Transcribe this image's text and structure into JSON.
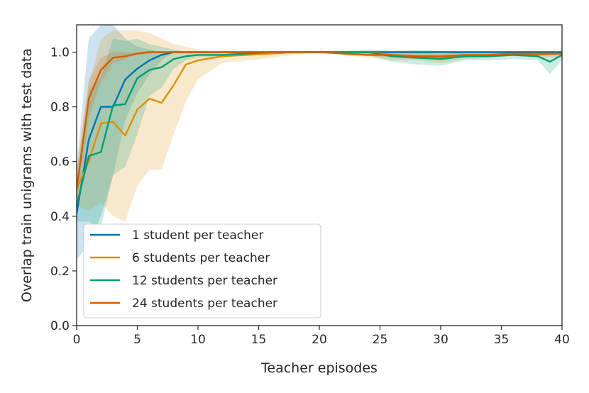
{
  "chart_data": {
    "type": "line",
    "xlabel": "Teacher episodes",
    "ylabel": "Overlap train unigrams with test data",
    "xlim": [
      0,
      40
    ],
    "ylim": [
      0.0,
      1.1
    ],
    "xticks": [
      0,
      5,
      10,
      15,
      20,
      25,
      30,
      35,
      40
    ],
    "yticks": [
      0.0,
      0.2,
      0.4,
      0.6,
      0.8,
      1.0
    ],
    "xtick_labels": [
      "0",
      "5",
      "10",
      "15",
      "20",
      "25",
      "30",
      "35",
      "40"
    ],
    "ytick_labels": [
      "0.0",
      "0.2",
      "0.4",
      "0.6",
      "0.8",
      "1.0"
    ],
    "grid": false,
    "legend_position": "lower-left",
    "series": [
      {
        "name": "1 student per teacher",
        "color": "#0173b2",
        "x": [
          0,
          1,
          2,
          3,
          4,
          5,
          6,
          7,
          8,
          9,
          10,
          12,
          14,
          16,
          18,
          20,
          22,
          24,
          26,
          28,
          30,
          32,
          34,
          36,
          38,
          40
        ],
        "values": [
          0.41,
          0.68,
          0.8,
          0.8,
          0.9,
          0.94,
          0.97,
          0.99,
          1.0,
          1.0,
          1.0,
          1.0,
          1.0,
          1.0,
          1.0,
          1.0,
          1.0,
          1.0,
          1.0,
          1.0,
          1.0,
          1.0,
          1.0,
          1.0,
          1.0,
          1.0
        ],
        "lower": [
          0.24,
          0.3,
          0.4,
          0.55,
          0.75,
          0.85,
          0.92,
          0.97,
          1.0,
          1.0,
          1.0,
          1.0,
          1.0,
          1.0,
          1.0,
          1.0,
          1.0,
          1.0,
          1.0,
          1.0,
          1.0,
          1.0,
          1.0,
          1.0,
          1.0,
          1.0
        ],
        "upper": [
          0.58,
          1.05,
          1.1,
          1.1,
          1.05,
          1.02,
          1.01,
          1.0,
          1.0,
          1.0,
          1.0,
          1.0,
          1.0,
          1.0,
          1.0,
          1.0,
          1.0,
          1.0,
          1.0,
          1.0,
          1.0,
          1.0,
          1.0,
          1.0,
          1.0,
          1.0
        ]
      },
      {
        "name": "6 students per teacher",
        "color": "#de8f05",
        "x": [
          0,
          1,
          2,
          3,
          4,
          5,
          6,
          7,
          8,
          9,
          10,
          12,
          14,
          16,
          18,
          20,
          22,
          24,
          26,
          28,
          30,
          32,
          34,
          36,
          38,
          40
        ],
        "values": [
          0.5,
          0.6,
          0.74,
          0.745,
          0.695,
          0.79,
          0.83,
          0.815,
          0.88,
          0.955,
          0.97,
          0.985,
          0.99,
          0.995,
          1.0,
          1.0,
          1.0,
          1.0,
          0.99,
          0.985,
          0.98,
          0.985,
          0.99,
          0.995,
          0.99,
          0.995
        ],
        "lower": [
          0.44,
          0.42,
          0.45,
          0.4,
          0.38,
          0.51,
          0.57,
          0.57,
          0.7,
          0.82,
          0.9,
          0.96,
          0.97,
          0.98,
          0.99,
          1.0,
          0.99,
          0.98,
          0.97,
          0.97,
          0.96,
          0.975,
          0.98,
          0.985,
          0.98,
          0.98
        ],
        "upper": [
          0.56,
          0.88,
          1.05,
          1.08,
          1.08,
          1.08,
          1.07,
          1.05,
          1.03,
          1.02,
          1.01,
          1.0,
          1.0,
          1.0,
          1.0,
          1.0,
          1.0,
          1.005,
          1.005,
          1.005,
          1.005,
          1.0,
          1.0,
          1.005,
          1.005,
          1.005
        ]
      },
      {
        "name": "12 students per teacher",
        "color": "#029e73",
        "x": [
          0,
          1,
          2,
          3,
          4,
          5,
          6,
          7,
          8,
          9,
          10,
          12,
          14,
          16,
          18,
          20,
          22,
          24,
          26,
          28,
          30,
          32,
          34,
          36,
          38,
          39,
          40
        ],
        "values": [
          0.44,
          0.62,
          0.635,
          0.805,
          0.81,
          0.905,
          0.935,
          0.945,
          0.975,
          0.985,
          0.99,
          0.99,
          0.995,
          1.0,
          1.0,
          1.0,
          1.0,
          1.0,
          0.985,
          0.98,
          0.975,
          0.985,
          0.985,
          0.99,
          0.985,
          0.965,
          0.99
        ],
        "lower": [
          0.38,
          0.38,
          0.36,
          0.55,
          0.58,
          0.7,
          0.84,
          0.87,
          0.94,
          0.97,
          0.98,
          0.985,
          0.99,
          0.995,
          0.995,
          0.995,
          0.995,
          0.99,
          0.965,
          0.955,
          0.95,
          0.97,
          0.97,
          0.975,
          0.97,
          0.92,
          0.97
        ],
        "upper": [
          0.5,
          0.86,
          0.91,
          1.05,
          1.04,
          1.05,
          1.03,
          1.02,
          1.01,
          1.0,
          1.0,
          1.0,
          1.0,
          1.0,
          1.0,
          1.0,
          1.005,
          1.01,
          1.005,
          1.01,
          1.005,
          1.005,
          1.005,
          1.005,
          1.005,
          1.005,
          1.005
        ]
      },
      {
        "name": "24 students per teacher",
        "color": "#d55e00",
        "x": [
          0,
          1,
          2,
          3,
          4,
          5,
          6,
          7,
          8,
          9,
          10,
          12,
          14,
          16,
          18,
          20,
          22,
          24,
          26,
          28,
          30,
          32,
          34,
          36,
          38,
          40
        ],
        "values": [
          0.5,
          0.83,
          0.935,
          0.98,
          0.985,
          0.995,
          1.0,
          1.0,
          1.0,
          1.0,
          1.0,
          1.0,
          1.0,
          1.0,
          1.0,
          1.0,
          0.995,
          0.99,
          0.99,
          0.985,
          0.985,
          0.99,
          0.99,
          0.995,
          0.995,
          0.995
        ],
        "lower": [
          0.44,
          0.76,
          0.89,
          0.96,
          0.975,
          0.99,
          0.995,
          1.0,
          1.0,
          1.0,
          1.0,
          1.0,
          1.0,
          1.0,
          1.0,
          1.0,
          0.99,
          0.985,
          0.98,
          0.975,
          0.975,
          0.98,
          0.985,
          0.99,
          0.99,
          0.99
        ],
        "upper": [
          0.56,
          0.9,
          0.98,
          1.0,
          1.0,
          1.0,
          1.005,
          1.0,
          1.0,
          1.0,
          1.0,
          1.0,
          1.0,
          1.0,
          1.0,
          1.0,
          1.0,
          1.0,
          1.0,
          1.0,
          0.995,
          1.0,
          1.0,
          1.0,
          1.0,
          1.0
        ]
      }
    ]
  }
}
